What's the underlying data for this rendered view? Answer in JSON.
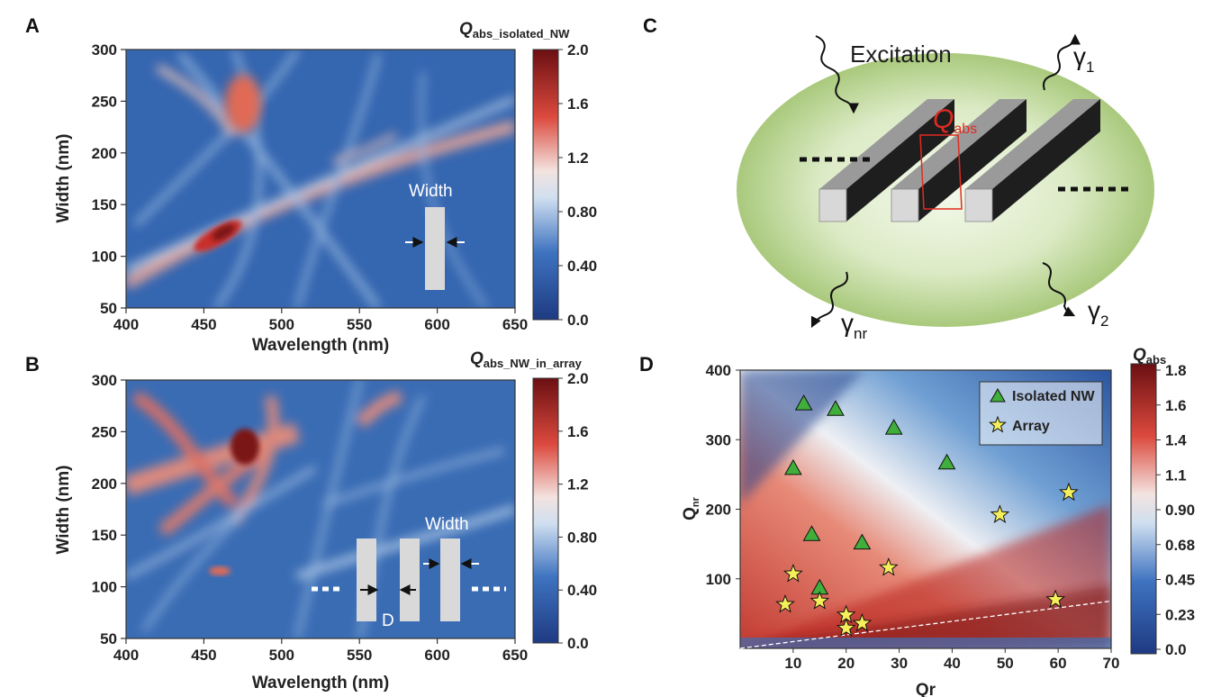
{
  "panels": {
    "A": {
      "letter": "A",
      "title_main": "Q",
      "title_sub": "abs_isolated_NW",
      "xlabel": "Wavelength (nm)",
      "ylabel": "Width (nm)",
      "xticks": [
        "400",
        "450",
        "500",
        "550",
        "600",
        "650"
      ],
      "yticks": [
        "50",
        "100",
        "150",
        "200",
        "250",
        "300"
      ],
      "colorbar_ticks": [
        "0.0",
        "0.40",
        "0.80",
        "1.2",
        "1.6",
        "2.0"
      ],
      "inset_label": "Width"
    },
    "B": {
      "letter": "B",
      "title_main": "Q",
      "title_sub": "abs_NW_in_array",
      "xlabel": "Wavelength (nm)",
      "ylabel": "Width (nm)",
      "xticks": [
        "400",
        "450",
        "500",
        "550",
        "600",
        "650"
      ],
      "yticks": [
        "50",
        "100",
        "150",
        "200",
        "250",
        "300"
      ],
      "colorbar_ticks": [
        "0.0",
        "0.40",
        "0.80",
        "1.2",
        "1.6",
        "2.0"
      ],
      "inset_width_label": "Width",
      "inset_gap_label": "D"
    },
    "C": {
      "letter": "C",
      "excitation": "Excitation",
      "q_main": "Q",
      "q_sub": "abs",
      "gamma": "γ",
      "gamma1_sub": "1",
      "gamma2_sub": "2",
      "gammanr_sub": "nr"
    },
    "D": {
      "letter": "D",
      "title_main": "Q",
      "title_sub": "abs",
      "xlabel": "Qr",
      "ylabel_main": "Q",
      "ylabel_sub": "nr",
      "xticks": [
        "10",
        "20",
        "30",
        "40",
        "50",
        "60",
        "70"
      ],
      "yticks": [
        "100",
        "200",
        "300",
        "400"
      ],
      "colorbar_ticks": [
        "0.0",
        "0.23",
        "0.45",
        "0.68",
        "0.90",
        "1.1",
        "1.4",
        "1.6",
        "1.8"
      ],
      "legend": [
        "Isolated NW",
        "Array"
      ]
    }
  },
  "colors": {
    "low": "#223f86",
    "mid": "#f2f2f2",
    "high": "#6b0f12",
    "triangle": "#3fae3a",
    "star": "#f5f05a",
    "halo": "#c7dfa0"
  },
  "chart_data": [
    {
      "type": "heatmap",
      "panel": "A",
      "title": "Qabs_isolated_NW",
      "xlabel": "Wavelength (nm)",
      "ylabel": "Width (nm)",
      "xlim": [
        400,
        650
      ],
      "ylim": [
        50,
        300
      ],
      "zlim": [
        0.0,
        2.0
      ],
      "ridges": [
        {
          "points": [
            [
              400,
              78
            ],
            [
              460,
              115
            ],
            [
              530,
              160
            ],
            [
              650,
              238
            ]
          ],
          "level": 1.3
        },
        {
          "points": [
            [
              470,
              210
            ],
            [
              485,
              245
            ],
            [
              500,
              275
            ]
          ],
          "level": 1.5
        }
      ],
      "hotspots": [
        {
          "x": 465,
          "y": 120,
          "value": 1.9
        },
        {
          "x": 478,
          "y": 240,
          "value": 1.5
        }
      ]
    },
    {
      "type": "heatmap",
      "panel": "B",
      "title": "Qabs_NW_in_array",
      "xlabel": "Wavelength (nm)",
      "ylabel": "Width (nm)",
      "xlim": [
        400,
        650
      ],
      "ylim": [
        50,
        300
      ],
      "zlim": [
        0.0,
        2.0
      ],
      "ridges": [
        {
          "points": [
            [
              400,
              200
            ],
            [
              450,
              220
            ],
            [
              480,
              235
            ],
            [
              520,
              250
            ]
          ],
          "level": 1.5
        },
        {
          "points": [
            [
              500,
              110
            ],
            [
              560,
              135
            ],
            [
              650,
              170
            ]
          ],
          "level": 0.9
        }
      ],
      "hotspots": [
        {
          "x": 480,
          "y": 235,
          "value": 1.9
        },
        {
          "x": 455,
          "y": 275,
          "value": 1.4
        },
        {
          "x": 575,
          "y": 270,
          "value": 1.3
        }
      ]
    },
    {
      "type": "scatter",
      "panel": "D",
      "title": "Qabs",
      "xlabel": "Qr",
      "ylabel": "Qnr",
      "xlim": [
        0,
        70
      ],
      "ylim": [
        0,
        400
      ],
      "zlim": [
        0.0,
        1.8
      ],
      "series": [
        {
          "name": "Isolated NW",
          "marker": "triangle",
          "points": [
            [
              12,
              352
            ],
            [
              18,
              344
            ],
            [
              29,
              317
            ],
            [
              10,
              259
            ],
            [
              39,
              267
            ],
            [
              13.5,
              164
            ],
            [
              23,
              152
            ],
            [
              15,
              87
            ]
          ]
        },
        {
          "name": "Array",
          "marker": "star",
          "points": [
            [
              10,
              107
            ],
            [
              8.5,
              63
            ],
            [
              15,
              68
            ],
            [
              20,
              48
            ],
            [
              20,
              29
            ],
            [
              23,
              36
            ],
            [
              28,
              116
            ],
            [
              49,
              192
            ],
            [
              62,
              224
            ],
            [
              59.5,
              70
            ]
          ]
        }
      ],
      "reference_line": {
        "from": [
          0,
          0
        ],
        "to": [
          70,
          68
        ],
        "style": "dashed"
      }
    }
  ]
}
